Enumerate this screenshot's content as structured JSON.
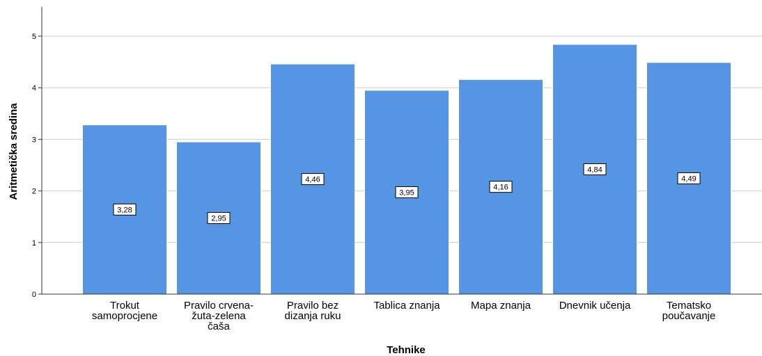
{
  "chart_data": {
    "type": "bar",
    "categories": [
      [
        "Trokut",
        "samoprocjene"
      ],
      [
        "Pravilo crvena-",
        "žuta-zelena",
        "čaša"
      ],
      [
        "Pravilo bez",
        "dizanja ruku"
      ],
      [
        "Tablica znanja"
      ],
      [
        "Mapa znanja"
      ],
      [
        "Dnevnik učenja"
      ],
      [
        "Tematsko",
        "poučavanje"
      ]
    ],
    "values": [
      3.28,
      2.95,
      4.46,
      3.95,
      4.16,
      4.84,
      4.49
    ],
    "data_labels": [
      "3,28",
      "2,95",
      "4,46",
      "3,95",
      "4,16",
      "4,84",
      "4,49"
    ],
    "xlabel": "Tehnike",
    "ylabel": "Aritmetička sredina",
    "ylim": [
      0,
      5.5
    ],
    "yticks": [
      0,
      1,
      2,
      3,
      4,
      5
    ],
    "ytick_labels": [
      "0",
      "1",
      "2",
      "3",
      "4",
      "5"
    ],
    "grid": true,
    "legend": "none",
    "colors": {
      "bar_fill": "#5595e3",
      "bar_stroke": "#ffffff",
      "grid": "#cccccc",
      "axis": "#333333",
      "text": "#000000"
    }
  }
}
